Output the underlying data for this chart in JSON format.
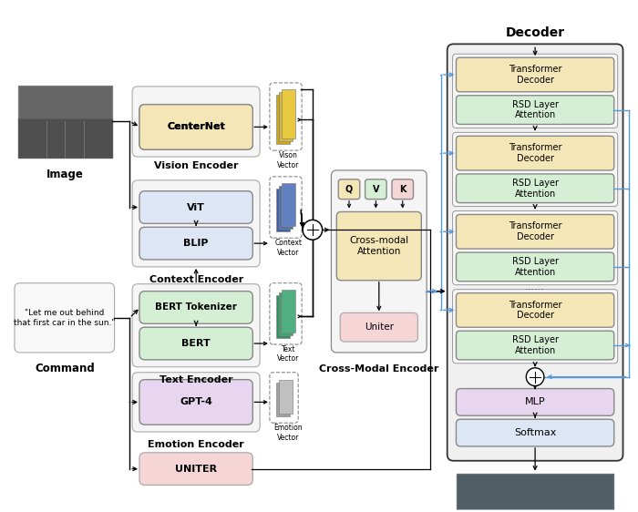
{
  "bg_color": "#ffffff",
  "boxes": {
    "centernet": {
      "label": "CenterNet",
      "fc": "#f5e6b8",
      "ec": "#888888"
    },
    "vit": {
      "label": "ViT",
      "fc": "#dce6f5",
      "ec": "#888888"
    },
    "blip": {
      "label": "BLIP",
      "fc": "#dce6f5",
      "ec": "#888888"
    },
    "bert_tok": {
      "label": "BERT Tokenizer",
      "fc": "#d5efd5",
      "ec": "#888888"
    },
    "bert": {
      "label": "BERT",
      "fc": "#d5efd5",
      "ec": "#888888"
    },
    "gpt4": {
      "label": "GPT-4",
      "fc": "#e8d5f0",
      "ec": "#888888"
    },
    "uniter": {
      "label": "UNITER",
      "fc": "#f5d5d5",
      "ec": "#aaaaaa"
    },
    "q": {
      "label": "Q",
      "fc": "#f5e6b8",
      "ec": "#888888"
    },
    "v": {
      "label": "V",
      "fc": "#d5efd5",
      "ec": "#888888"
    },
    "k": {
      "label": "K",
      "fc": "#f5d5d5",
      "ec": "#888888"
    },
    "cross_attn": {
      "label": "Cross-modal\nAttention",
      "fc": "#f5e6b8",
      "ec": "#888888"
    },
    "uniter2": {
      "label": "Uniter",
      "fc": "#f5d5d5",
      "ec": "#aaaaaa"
    },
    "td": {
      "label": "Transformer\nDecoder",
      "fc": "#f5e6b8",
      "ec": "#888888"
    },
    "rsd": {
      "label": "RSD Layer\nAttention",
      "fc": "#d5efd5",
      "ec": "#888888"
    },
    "mlp": {
      "label": "MLP",
      "fc": "#e8d5f0",
      "ec": "#888888"
    },
    "softmax": {
      "label": "Softmax",
      "fc": "#dce6f5",
      "ec": "#888888"
    }
  },
  "vision_vec_fc": "#e0c840",
  "context_vec_fc": "#7090c0",
  "text_vec_fc": "#50a870",
  "emotion_vec_fc": "#c0c0c0",
  "blue_arrow": "#5599dd",
  "image_label": "Image",
  "command_text": "\"Let me out behind\nthat first car in the sun.\"",
  "command_label": "Command",
  "vision_encoder_label": "Vision Encoder",
  "context_encoder_label": "Context Encoder",
  "text_encoder_label": "Text Encoder",
  "emotion_encoder_label": "Emotion Encoder",
  "cross_modal_label": "Cross-Modal Encoder",
  "decoder_label": "Decoder",
  "vison_vec_label": "Vison\nVector",
  "context_vec_label": "Context\nVector",
  "text_vec_label": "Text\nVector",
  "emotion_vec_label": "Emotion\nVector"
}
